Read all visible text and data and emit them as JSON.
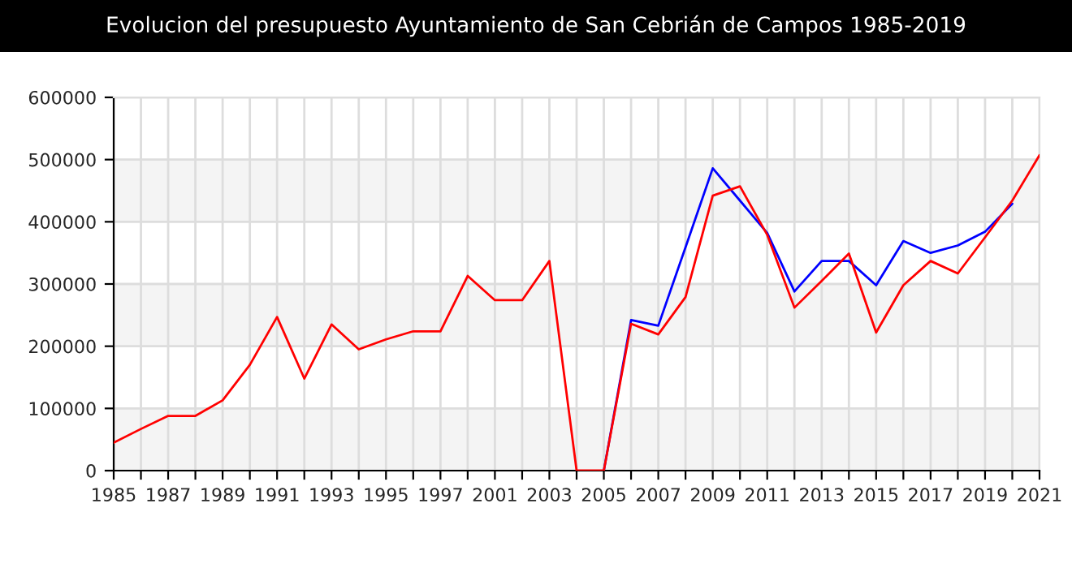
{
  "chart_data": {
    "type": "line",
    "title": "Evolucion del presupuesto Ayuntamiento de San Cebrián de Campos 1985-2019",
    "categories": [
      "1985",
      null,
      "1987",
      null,
      "1989",
      null,
      "1991",
      null,
      "1993",
      null,
      "1995",
      null,
      "1997",
      null,
      "2001",
      null,
      "2003",
      null,
      "2005",
      null,
      "2007",
      null,
      "2009",
      null,
      "2011",
      null,
      "2013",
      null,
      "2015",
      null,
      "2017",
      null,
      "2019",
      null,
      "2021"
    ],
    "series": [
      {
        "color": "#0000ff",
        "values": [
          null,
          null,
          null,
          null,
          null,
          null,
          null,
          null,
          null,
          null,
          null,
          null,
          null,
          null,
          null,
          null,
          null,
          null,
          0,
          242000,
          233000,
          359000,
          486000,
          434000,
          382000,
          288000,
          337000,
          337000,
          298000,
          369000,
          350000,
          362000,
          384000,
          429000,
          null
        ]
      },
      {
        "color": "#ff0000",
        "values": [
          45000,
          67000,
          88000,
          88000,
          113000,
          170000,
          247000,
          148000,
          235000,
          195000,
          211000,
          224000,
          224000,
          313000,
          274000,
          274000,
          337000,
          0,
          0,
          236000,
          219000,
          279000,
          442000,
          457000,
          379000,
          262000,
          305000,
          349000,
          222000,
          298000,
          337000,
          317000,
          375000,
          434000,
          507000
        ]
      }
    ],
    "ylim": [
      0,
      600000
    ],
    "yticks": [
      0,
      100000,
      200000,
      300000,
      400000,
      500000,
      600000
    ],
    "bands": [
      {
        "axis": "y",
        "from": 0,
        "to": 100000,
        "color": "#f4f4f4"
      },
      {
        "axis": "y",
        "from": 200000,
        "to": 300000,
        "color": "#f4f4f4"
      },
      {
        "axis": "y",
        "from": 400000,
        "to": 500000,
        "color": "#f4f4f4"
      }
    ],
    "grid": true,
    "marker": "none",
    "line_style": "solid"
  }
}
